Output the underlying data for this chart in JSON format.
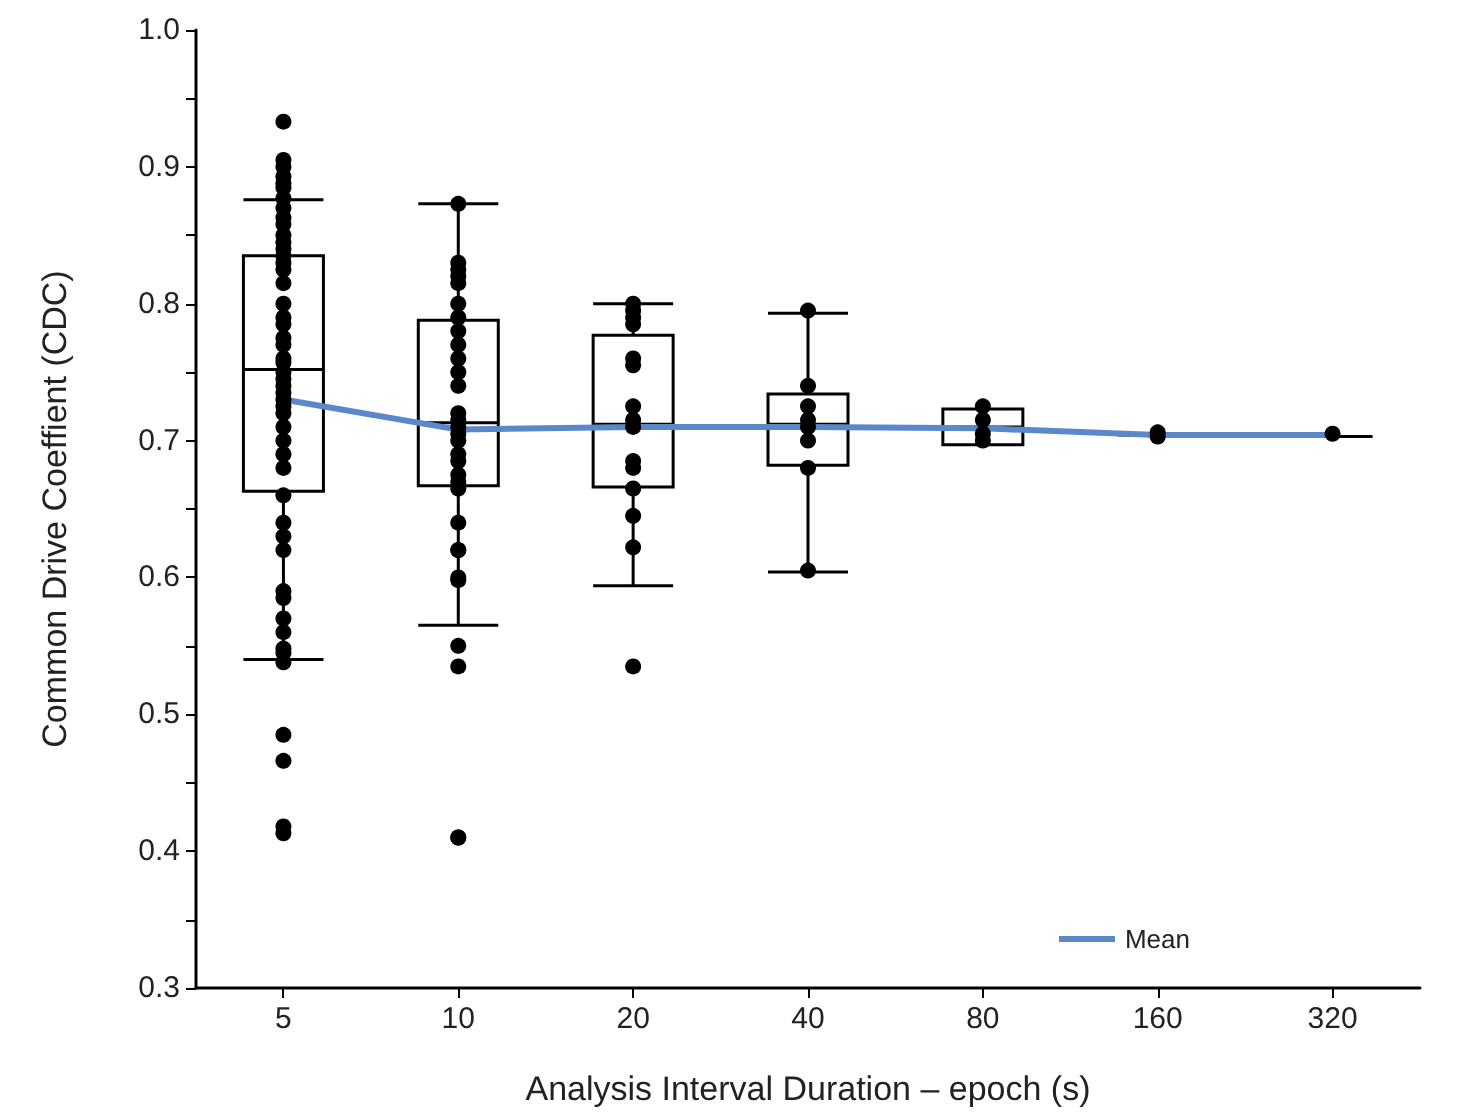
{
  "chart_data": {
    "type": "box",
    "xlabel": "Analysis Interval Duration – epoch (s)",
    "ylabel": "Common Drive Coeffient (CDC)",
    "categories": [
      "5",
      "10",
      "20",
      "40",
      "80",
      "160",
      "320"
    ],
    "ylim": [
      0.3,
      1.0
    ],
    "yticks": [
      0.3,
      {
        "value": 0.35,
        "label": null
      },
      0.4,
      {
        "value": 0.45,
        "label": null
      },
      0.5,
      {
        "value": 0.55,
        "label": null
      },
      0.6,
      {
        "value": 0.65,
        "label": null
      },
      0.7,
      {
        "value": 0.75,
        "label": null
      },
      0.8,
      {
        "value": 0.85,
        "label": null
      },
      0.9,
      {
        "value": 0.95,
        "label": null
      },
      {
        "value": 1.0,
        "label": "1.0"
      }
    ],
    "series": [
      {
        "color": "#000000",
        "boxes": [
          {
            "low": 0.54,
            "q1": 0.663,
            "median": 0.752,
            "q3": 0.835,
            "high": 0.876
          },
          {
            "low": 0.565,
            "q1": 0.667,
            "median": 0.713,
            "q3": 0.788,
            "high": 0.873
          },
          {
            "low": 0.594,
            "q1": 0.666,
            "median": 0.712,
            "q3": 0.777,
            "high": 0.8
          },
          {
            "low": 0.604,
            "q1": 0.682,
            "median": 0.712,
            "q3": 0.734,
            "high": 0.793
          },
          {
            "low": 0.697,
            "q1": 0.697,
            "median": 0.71,
            "q3": 0.723,
            "high": 0.723
          },
          {
            "low": 0.704,
            "q1": 0.704,
            "median": 0.704,
            "q3": 0.704,
            "high": 0.704
          },
          {
            "low": 0.703,
            "q1": 0.703,
            "median": 0.703,
            "q3": 0.703,
            "high": 0.703
          }
        ]
      },
      {
        "type": "scatter",
        "color": "#000000",
        "marker": "circle",
        "x": [
          "5",
          "5",
          "5",
          "5",
          "5",
          "5",
          "5",
          "5",
          "5",
          "5",
          "5",
          "5",
          "5",
          "5",
          "5",
          "5",
          "5",
          "5",
          "5",
          "5",
          "5",
          "5",
          "5",
          "5",
          "5",
          "5",
          "5",
          "5",
          "5",
          "5",
          "5",
          "5",
          "5",
          "5",
          "5",
          "5",
          "5",
          "5",
          "5",
          "5",
          "5",
          "5",
          "5",
          "5",
          "5",
          "5",
          "5",
          "5",
          "5",
          "5",
          "10",
          "10",
          "10",
          "10",
          "10",
          "10",
          "10",
          "10",
          "10",
          "10",
          "10",
          "10",
          "10",
          "10",
          "10",
          "10",
          "10",
          "10",
          "10",
          "10",
          "10",
          "10",
          "10",
          "10",
          "10",
          "10",
          "10",
          "10",
          "10",
          "10",
          "10",
          "20",
          "20",
          "20",
          "20",
          "20",
          "20",
          "20",
          "20",
          "20",
          "20",
          "20",
          "20",
          "20",
          "20",
          "20",
          "40",
          "40",
          "40",
          "40",
          "40",
          "40",
          "40",
          "40",
          "80",
          "80",
          "80",
          "80",
          "160",
          "160",
          "320"
        ],
        "values": [
          0.933,
          0.905,
          0.9,
          0.893,
          0.888,
          0.885,
          0.877,
          0.87,
          0.863,
          0.858,
          0.85,
          0.845,
          0.84,
          0.835,
          0.83,
          0.825,
          0.815,
          0.8,
          0.79,
          0.785,
          0.775,
          0.77,
          0.76,
          0.757,
          0.75,
          0.745,
          0.74,
          0.735,
          0.73,
          0.725,
          0.72,
          0.71,
          0.7,
          0.69,
          0.68,
          0.66,
          0.64,
          0.63,
          0.62,
          0.59,
          0.585,
          0.57,
          0.56,
          0.548,
          0.545,
          0.538,
          0.485,
          0.466,
          0.418,
          0.413,
          0.873,
          0.83,
          0.825,
          0.82,
          0.815,
          0.8,
          0.79,
          0.78,
          0.77,
          0.76,
          0.75,
          0.74,
          0.72,
          0.715,
          0.71,
          0.705,
          0.7,
          0.69,
          0.685,
          0.675,
          0.67,
          0.665,
          0.64,
          0.62,
          0.62,
          0.6,
          0.598,
          0.55,
          0.535,
          0.41,
          0.41,
          0.8,
          0.795,
          0.79,
          0.785,
          0.76,
          0.755,
          0.725,
          0.715,
          0.71,
          0.685,
          0.68,
          0.665,
          0.645,
          0.622,
          0.535,
          0.795,
          0.74,
          0.725,
          0.715,
          0.71,
          0.7,
          0.68,
          0.605,
          0.725,
          0.715,
          0.705,
          0.7,
          0.706,
          0.703,
          0.705
        ]
      },
      {
        "type": "line",
        "name": "Mean",
        "color": "#5a88c8",
        "marker": "none",
        "values": [
          0.73,
          0.708,
          0.71,
          0.71,
          0.709,
          0.704,
          0.704
        ]
      }
    ],
    "legend": "bottom right",
    "grid": false
  }
}
